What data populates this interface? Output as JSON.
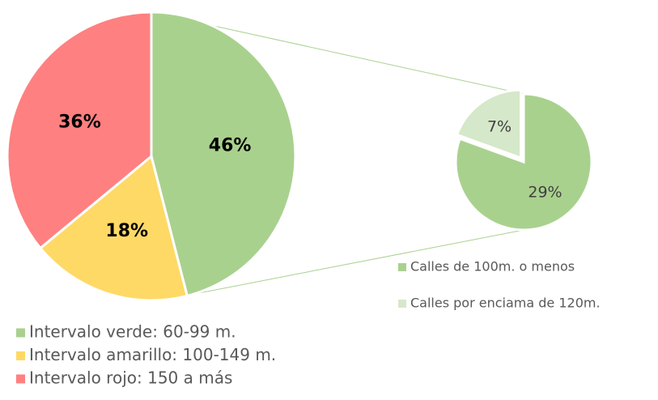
{
  "chart_data": [
    {
      "type": "pie",
      "categories": [
        "Intervalo verde: 60-99 m.",
        "Intervalo amarillo: 100-149 m.",
        "Intervalo rojo: 150 a más"
      ],
      "values": [
        46,
        18,
        36
      ],
      "value_labels": [
        "46%",
        "18%",
        "36%"
      ],
      "colors": [
        "#a9d18e",
        "#ffd966",
        "#ff8080"
      ]
    },
    {
      "type": "pie",
      "categories": [
        "Calles de 100m. o menos",
        "Calles por enciama de 120m."
      ],
      "values": [
        29,
        7
      ],
      "value_labels": [
        "29%",
        "7%"
      ],
      "colors": [
        "#a9d18e",
        "#d5e8c9"
      ]
    }
  ]
}
